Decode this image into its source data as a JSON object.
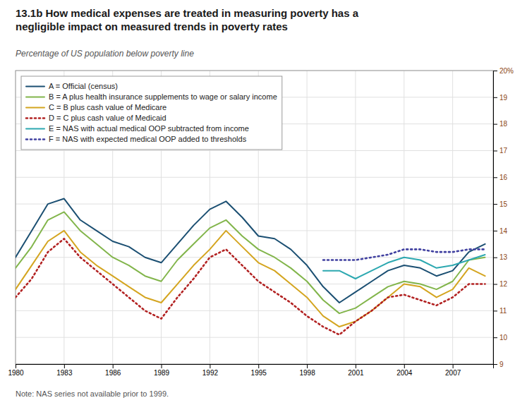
{
  "chart_data": {
    "type": "line",
    "title": "13.1b How medical expenses are treated in measuring poverty has a\nnegligible impact on measured trends in poverty rates",
    "subtitle": "Percentage of US population below poverty line",
    "annotations": [
      "Note: NAS series not available prior to 1999."
    ],
    "x": [
      1980,
      1981,
      1982,
      1983,
      1984,
      1985,
      1986,
      1987,
      1988,
      1989,
      1990,
      1991,
      1992,
      1993,
      1994,
      1995,
      1996,
      1997,
      1998,
      1999,
      2000,
      2001,
      2002,
      2003,
      2004,
      2005,
      2006,
      2007,
      2008,
      2009
    ],
    "xlim": [
      1980,
      2009.5
    ],
    "xticks": [
      1980,
      1983,
      1986,
      1989,
      1992,
      1995,
      1998,
      2001,
      2004,
      2007
    ],
    "ylim": [
      9,
      20
    ],
    "yticks": [
      9,
      10,
      11,
      12,
      13,
      14,
      15,
      16,
      17,
      18,
      19,
      {
        "value": 20,
        "label": "20%"
      }
    ],
    "grid": true,
    "legend": "upper left",
    "series": [
      {
        "name": "A = Official (census)",
        "color": "#1b4f72",
        "line_style": "solid",
        "values": [
          13.0,
          14.0,
          15.0,
          15.2,
          14.4,
          14.0,
          13.6,
          13.4,
          13.0,
          12.8,
          13.5,
          14.2,
          14.8,
          15.1,
          14.5,
          13.8,
          13.7,
          13.3,
          12.7,
          11.9,
          11.3,
          11.7,
          12.1,
          12.5,
          12.7,
          12.6,
          12.3,
          12.5,
          13.2,
          13.5
        ]
      },
      {
        "name": "B = A plus health insurance supplements to wage or salary income",
        "color": "#82b54b",
        "line_style": "solid",
        "values": [
          12.6,
          13.4,
          14.4,
          14.7,
          14.0,
          13.5,
          13.0,
          12.7,
          12.3,
          12.1,
          12.9,
          13.5,
          14.1,
          14.4,
          13.8,
          13.3,
          13.0,
          12.6,
          12.1,
          11.4,
          10.9,
          11.1,
          11.5,
          11.9,
          12.1,
          12.0,
          11.8,
          12.1,
          12.9,
          13.0
        ]
      },
      {
        "name": "C = B plus cash value of Medicare",
        "color": "#d4a520",
        "line_style": "solid",
        "values": [
          11.8,
          12.7,
          13.6,
          14.0,
          13.2,
          12.7,
          12.3,
          11.9,
          11.5,
          11.3,
          12.0,
          12.7,
          13.3,
          14.0,
          13.4,
          12.8,
          12.5,
          12.0,
          11.5,
          10.8,
          10.4,
          10.6,
          11.0,
          11.5,
          12.0,
          11.9,
          11.5,
          11.8,
          12.6,
          12.3
        ]
      },
      {
        "name": "D = C plus cash value of Medicaid",
        "color": "#b22222",
        "line_style": "dotted",
        "values": [
          11.5,
          12.2,
          13.2,
          13.7,
          13.0,
          12.5,
          12.0,
          11.5,
          11.0,
          10.7,
          11.5,
          12.2,
          13.0,
          13.3,
          12.7,
          12.1,
          11.7,
          11.3,
          10.8,
          10.4,
          10.1,
          10.6,
          11.0,
          11.5,
          11.6,
          11.4,
          11.2,
          11.5,
          12.0,
          12.0
        ]
      },
      {
        "name": "E = NAS with actual medical OOP subtracted from income",
        "color": "#2ca8b0",
        "line_style": "solid",
        "values": [
          null,
          null,
          null,
          null,
          null,
          null,
          null,
          null,
          null,
          null,
          null,
          null,
          null,
          null,
          null,
          null,
          null,
          null,
          null,
          12.5,
          12.5,
          12.2,
          12.5,
          12.8,
          13.0,
          12.9,
          12.6,
          12.7,
          12.9,
          13.1
        ]
      },
      {
        "name": "F = NAS with expected medical OOP added to thresholds",
        "color": "#4040a0",
        "line_style": "dotted",
        "values": [
          null,
          null,
          null,
          null,
          null,
          null,
          null,
          null,
          null,
          null,
          null,
          null,
          null,
          null,
          null,
          null,
          null,
          null,
          null,
          12.9,
          12.9,
          12.9,
          13.0,
          13.1,
          13.3,
          13.3,
          13.2,
          13.2,
          13.3,
          13.3
        ]
      }
    ]
  }
}
